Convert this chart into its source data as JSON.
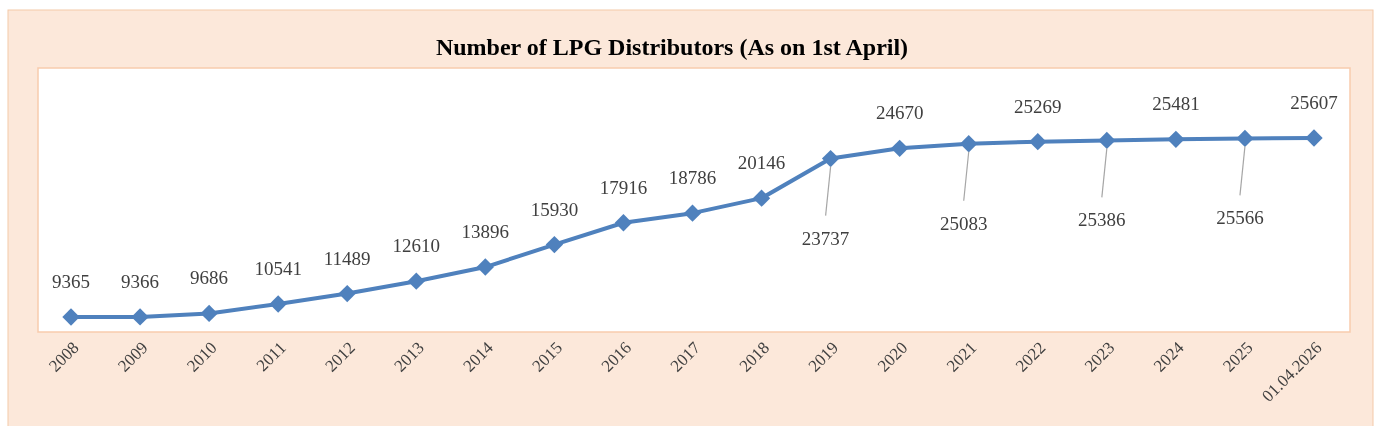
{
  "chart_data": {
    "type": "line",
    "title": "Number of LPG Distributors (As on 1st April)",
    "categories": [
      "2008",
      "2009",
      "2010",
      "2011",
      "2012",
      "2013",
      "2014",
      "2015",
      "2016",
      "2017",
      "2018",
      "2019",
      "2020",
      "2021",
      "2022",
      "2023",
      "2024",
      "2025",
      "01.04.2026"
    ],
    "series": [
      {
        "color": "#4f81bd",
        "values": [
          9365,
          9366,
          9686,
          10541,
          11489,
          12610,
          13896,
          15930,
          17916,
          18786,
          20146,
          23737,
          24670,
          25083,
          25269,
          25386,
          25481,
          25566,
          25607
        ]
      }
    ],
    "data_labels": true,
    "marker": "diamond",
    "line_style": "solid"
  }
}
